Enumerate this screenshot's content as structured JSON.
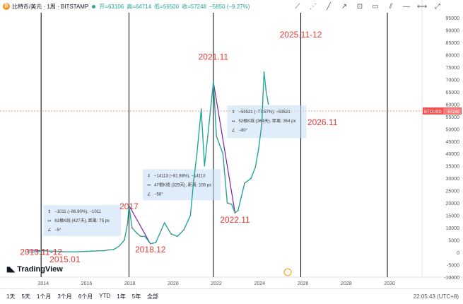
{
  "header": {
    "symbol": "比特币/美元 · 1周 · BITSTAMP",
    "open": "开=63106",
    "high": "高=64714",
    "low": "低=56500",
    "close": "收=57248",
    "change": "−5850 (−9.27%)"
  },
  "price_tag": {
    "label": "BTCUSD",
    "value": "57248"
  },
  "watermark": "TradingView",
  "bottom_bar": {
    "timeframes": [
      "1天",
      "5天",
      "1个月",
      "3个月",
      "6个月",
      "YTD",
      "1年",
      "5年",
      "全部"
    ],
    "clock": "22:05:43 (UTC+8)"
  },
  "chart_data": {
    "type": "line",
    "title": "",
    "x_tick_labels": [
      "2014",
      "2016",
      "2018",
      "2020",
      "2022",
      "2024",
      "2026",
      "2028",
      "2030"
    ],
    "y_tick_labels": [
      "95000",
      "90000",
      "85000",
      "80000",
      "75000",
      "70000",
      "65000",
      "60000",
      "55000",
      "50000",
      "45000",
      "40000",
      "35000",
      "30000",
      "25000",
      "20000",
      "15000",
      "10000",
      "5000",
      "0",
      "-5000",
      "-10000"
    ],
    "ylim": [
      -10000,
      97000
    ],
    "xlim": [
      2012.0,
      2031.5
    ],
    "last_price": 57248,
    "series": [
      {
        "x": [
          2013.25,
          2013.5,
          2013.8,
          2013.95,
          2014.2,
          2014.5,
          2014.8,
          2015.0,
          2015.5,
          2015.8,
          2016.0,
          2016.5,
          2016.8,
          2017.0,
          2017.25,
          2017.5,
          2017.75,
          2017.9,
          2017.96,
          2018.1,
          2018.3,
          2018.5,
          2018.7,
          2018.95,
          2019.2,
          2019.45,
          2019.6,
          2019.9,
          2020.2,
          2020.5,
          2020.8,
          2020.95,
          2021.1,
          2021.3,
          2021.45,
          2021.6,
          2021.86,
          2022.0,
          2022.3,
          2022.5,
          2022.7,
          2022.86,
          2023.0,
          2023.3,
          2023.6,
          2023.8,
          2023.95,
          2024.1,
          2024.2,
          2024.3,
          2024.4
        ],
        "y": [
          200,
          120,
          400,
          1000,
          600,
          500,
          350,
          250,
          250,
          350,
          420,
          650,
          700,
          1000,
          1200,
          2500,
          5000,
          12000,
          19000,
          10000,
          8000,
          6500,
          6500,
          3500,
          4000,
          9000,
          12000,
          7500,
          6500,
          9200,
          15000,
          29000,
          40000,
          58000,
          35000,
          47000,
          69000,
          47000,
          40000,
          20000,
          19500,
          16000,
          17000,
          28000,
          30000,
          34500,
          42000,
          52000,
          73000,
          65000,
          60000
        ]
      }
    ],
    "annotations": [
      {
        "text": "2013.11-12",
        "x": 2013.9,
        "y": -1000
      },
      {
        "text": "2015.01",
        "x": 2015.0,
        "y": -4000
      },
      {
        "text": "2017",
        "x": 2017.96,
        "y": 17500
      },
      {
        "text": "2018.12",
        "x": 2018.95,
        "y": 0
      },
      {
        "text": "2021.11",
        "x": 2021.86,
        "y": 78000
      },
      {
        "text": "2022.11",
        "x": 2022.86,
        "y": 12000
      },
      {
        "text": "2025.11-12",
        "x": 2025.9,
        "y": 87000
      },
      {
        "text": "2026.11",
        "x": 2026.9,
        "y": 51500
      }
    ],
    "vertical_markers": [
      2013.9,
      2017.96,
      2021.86,
      2025.9,
      2029.9
    ],
    "measurements": [
      {
        "line1": "−1011 (−86.90%), −1011",
        "line2": "61根K线 (427天), 距离: 75 px",
        "line3": "−5°"
      },
      {
        "line1": "−14113 (−81.88%), −14113",
        "line2": "47根K线 (329天), 距离: 108 px",
        "line3": "−58°"
      },
      {
        "line1": "−53521 (−77.57%), −53521",
        "line2": "52根K线 (364天), 距离: 354 px",
        "line3": "−80°"
      }
    ]
  }
}
